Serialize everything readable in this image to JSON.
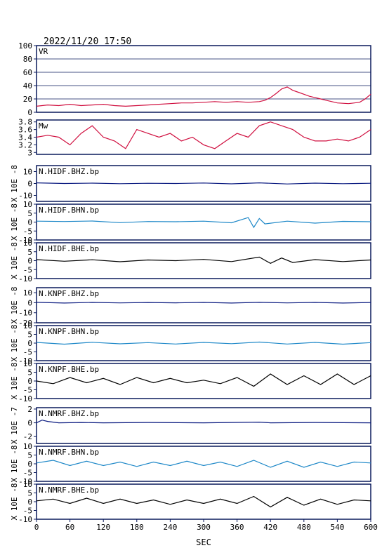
{
  "header": {
    "datetime": "2022/11/20 17:50"
  },
  "colors": {
    "frame": "#0a1a5c",
    "vr": "#d01040",
    "mw": "#d01040",
    "blue_dark": "#0a1a80",
    "blue_light": "#1e88c8",
    "black": "#000000"
  },
  "chart_data": {
    "type": "line",
    "xlabel": "SEC",
    "xlim": [
      0,
      600
    ],
    "xticks": [
      0,
      60,
      120,
      180,
      240,
      300,
      360,
      420,
      480,
      540,
      600
    ],
    "panels": [
      {
        "label": "VR",
        "ylabel": "",
        "yticks": [
          0,
          20,
          40,
          60,
          80,
          100
        ],
        "ylim": [
          0,
          100
        ],
        "grid": true,
        "color": "#d01040",
        "series": {
          "x": [
            0,
            20,
            40,
            60,
            80,
            100,
            120,
            140,
            160,
            180,
            200,
            220,
            240,
            260,
            280,
            300,
            320,
            340,
            360,
            380,
            400,
            410,
            420,
            430,
            440,
            450,
            460,
            470,
            480,
            490,
            500,
            510,
            520,
            540,
            560,
            580,
            590,
            600
          ],
          "y": [
            9,
            11,
            10,
            12,
            10,
            11,
            12,
            10,
            9,
            10,
            11,
            12,
            13,
            14,
            14,
            15,
            16,
            15,
            16,
            15,
            16,
            18,
            22,
            28,
            35,
            38,
            33,
            30,
            27,
            24,
            22,
            20,
            18,
            14,
            13,
            15,
            20,
            27
          ]
        }
      },
      {
        "label": "Mw",
        "ylabel": "",
        "yticks": [
          3.0,
          3.2,
          3.4,
          3.6,
          3.8
        ],
        "ylim": [
          2.95,
          3.85
        ],
        "grid": false,
        "color": "#d01040",
        "series": {
          "x": [
            0,
            20,
            40,
            60,
            80,
            100,
            120,
            140,
            160,
            180,
            200,
            220,
            240,
            260,
            280,
            300,
            320,
            340,
            360,
            380,
            400,
            420,
            440,
            460,
            480,
            500,
            520,
            540,
            560,
            580,
            600
          ],
          "y": [
            3.4,
            3.45,
            3.4,
            3.2,
            3.5,
            3.7,
            3.4,
            3.3,
            3.1,
            3.6,
            3.5,
            3.4,
            3.5,
            3.3,
            3.4,
            3.2,
            3.1,
            3.3,
            3.5,
            3.4,
            3.7,
            3.8,
            3.7,
            3.6,
            3.4,
            3.3,
            3.3,
            3.35,
            3.3,
            3.4,
            3.6
          ]
        }
      },
      {
        "label": "N.HIDF.BHZ.bp",
        "ylabel": "X 10E -8",
        "yticks": [
          -10,
          0,
          10
        ],
        "ylim": [
          -15,
          15
        ],
        "color": "#0a1a80",
        "series": {
          "x": [
            0,
            50,
            100,
            150,
            200,
            250,
            300,
            350,
            400,
            450,
            500,
            550,
            600
          ],
          "y": [
            0.5,
            0,
            0.3,
            -0.2,
            0.2,
            0,
            0.4,
            -0.3,
            0.5,
            -0.4,
            0.3,
            -0.2,
            0.2
          ]
        }
      },
      {
        "label": "N.HIDF.BHN.bp",
        "ylabel": "X 10E -8",
        "yticks": [
          -10,
          -5,
          0,
          5,
          10
        ],
        "ylim": [
          -10,
          10
        ],
        "color": "#1e88c8",
        "series": {
          "x": [
            0,
            50,
            100,
            150,
            200,
            250,
            300,
            350,
            380,
            390,
            400,
            410,
            450,
            500,
            550,
            600
          ],
          "y": [
            0.5,
            0.3,
            0.6,
            -0.3,
            0.3,
            0.2,
            0.5,
            -0.4,
            2.5,
            -3,
            2,
            -1,
            0.5,
            -0.6,
            0.4,
            0.2
          ]
        }
      },
      {
        "label": "N.HIDF.BHE.bp",
        "ylabel": "X 10E -8",
        "yticks": [
          -10,
          -5,
          0,
          5,
          10
        ],
        "ylim": [
          -10,
          10
        ],
        "color": "#000000",
        "series": {
          "x": [
            0,
            50,
            100,
            150,
            200,
            250,
            300,
            350,
            400,
            420,
            440,
            460,
            500,
            550,
            600
          ],
          "y": [
            0.6,
            -0.3,
            0.5,
            -0.6,
            0.4,
            0,
            0.7,
            -0.5,
            2,
            -1.5,
            1.5,
            -1,
            0.6,
            -0.5,
            0.4
          ]
        }
      },
      {
        "label": "N.KNPF.BHZ.bp",
        "ylabel": "X 10E -8",
        "yticks": [
          -20,
          -10,
          0,
          10
        ],
        "ylim": [
          -20,
          15
        ],
        "color": "#0a1a80",
        "series": {
          "x": [
            0,
            50,
            100,
            150,
            200,
            250,
            300,
            350,
            400,
            450,
            500,
            550,
            600
          ],
          "y": [
            0.4,
            -0.3,
            0.3,
            -0.2,
            0.2,
            -0.1,
            0.3,
            -0.3,
            0.4,
            -0.2,
            0.3,
            -0.3,
            0.2
          ]
        }
      },
      {
        "label": "N.KNPF.BHN.bp",
        "ylabel": "X 10E -8",
        "yticks": [
          -10,
          -5,
          0,
          5,
          10
        ],
        "ylim": [
          -10,
          10
        ],
        "color": "#1e88c8",
        "series": {
          "x": [
            0,
            50,
            100,
            150,
            200,
            250,
            300,
            350,
            400,
            450,
            500,
            550,
            600
          ],
          "y": [
            0.4,
            -0.6,
            0.5,
            -0.4,
            0.3,
            -0.5,
            0.4,
            -0.3,
            0.6,
            -0.5,
            0.4,
            -0.6,
            0.3
          ]
        }
      },
      {
        "label": "N.KNPF.BHE.bp",
        "ylabel": "X 10E -8",
        "yticks": [
          -10,
          -5,
          0,
          5,
          10
        ],
        "ylim": [
          -10,
          10
        ],
        "color": "#000000",
        "series": {
          "x": [
            0,
            30,
            60,
            90,
            120,
            150,
            180,
            210,
            240,
            270,
            300,
            330,
            360,
            390,
            420,
            450,
            480,
            510,
            540,
            570,
            600
          ],
          "y": [
            0,
            -1.5,
            2,
            -1,
            1.5,
            -2,
            2,
            -1,
            1.5,
            -1,
            0.5,
            -1.5,
            2,
            -3,
            4,
            -2,
            3,
            -2,
            4,
            -2,
            3
          ]
        }
      },
      {
        "label": "N.NMRF.BHZ.bp",
        "ylabel": "X 10E -7",
        "yticks": [
          -2,
          0,
          2
        ],
        "ylim": [
          -3,
          2.2
        ],
        "color": "#0a1a80",
        "series": {
          "x": [
            0,
            10,
            20,
            40,
            80,
            120,
            200,
            300,
            400,
            420,
            500,
            600
          ],
          "y": [
            0,
            0.4,
            0.2,
            0,
            0.05,
            0,
            0.05,
            0,
            0.1,
            0,
            0.05,
            0
          ]
        }
      },
      {
        "label": "N.NMRF.BHN.bp",
        "ylabel": "X 10E -8",
        "yticks": [
          -10,
          -5,
          0,
          5,
          10
        ],
        "ylim": [
          -10,
          10
        ],
        "color": "#1e88c8",
        "series": {
          "x": [
            0,
            30,
            60,
            90,
            120,
            150,
            180,
            210,
            240,
            270,
            300,
            330,
            360,
            390,
            420,
            450,
            480,
            510,
            540,
            570,
            600
          ],
          "y": [
            0.5,
            2,
            -1,
            1.5,
            -1,
            1,
            -1.5,
            1,
            -1,
            1.5,
            -1,
            1,
            -1.5,
            2,
            -2,
            1.5,
            -2,
            1,
            -1.5,
            1,
            0.5
          ]
        }
      },
      {
        "label": "N.NMRF.BHE.bp",
        "ylabel": "X 10E -8",
        "yticks": [
          -10,
          -5,
          0,
          5,
          10
        ],
        "ylim": [
          -10,
          10
        ],
        "color": "#000000",
        "series": {
          "x": [
            0,
            30,
            60,
            90,
            120,
            150,
            180,
            210,
            240,
            270,
            300,
            330,
            360,
            390,
            420,
            450,
            480,
            510,
            540,
            570,
            600
          ],
          "y": [
            0.5,
            1.5,
            -1,
            2,
            -1,
            1.5,
            -1,
            1,
            -1.5,
            1,
            -1,
            1.5,
            -1,
            3,
            -3,
            2.5,
            -2,
            1.5,
            -1.5,
            1,
            0.5
          ]
        }
      }
    ]
  }
}
